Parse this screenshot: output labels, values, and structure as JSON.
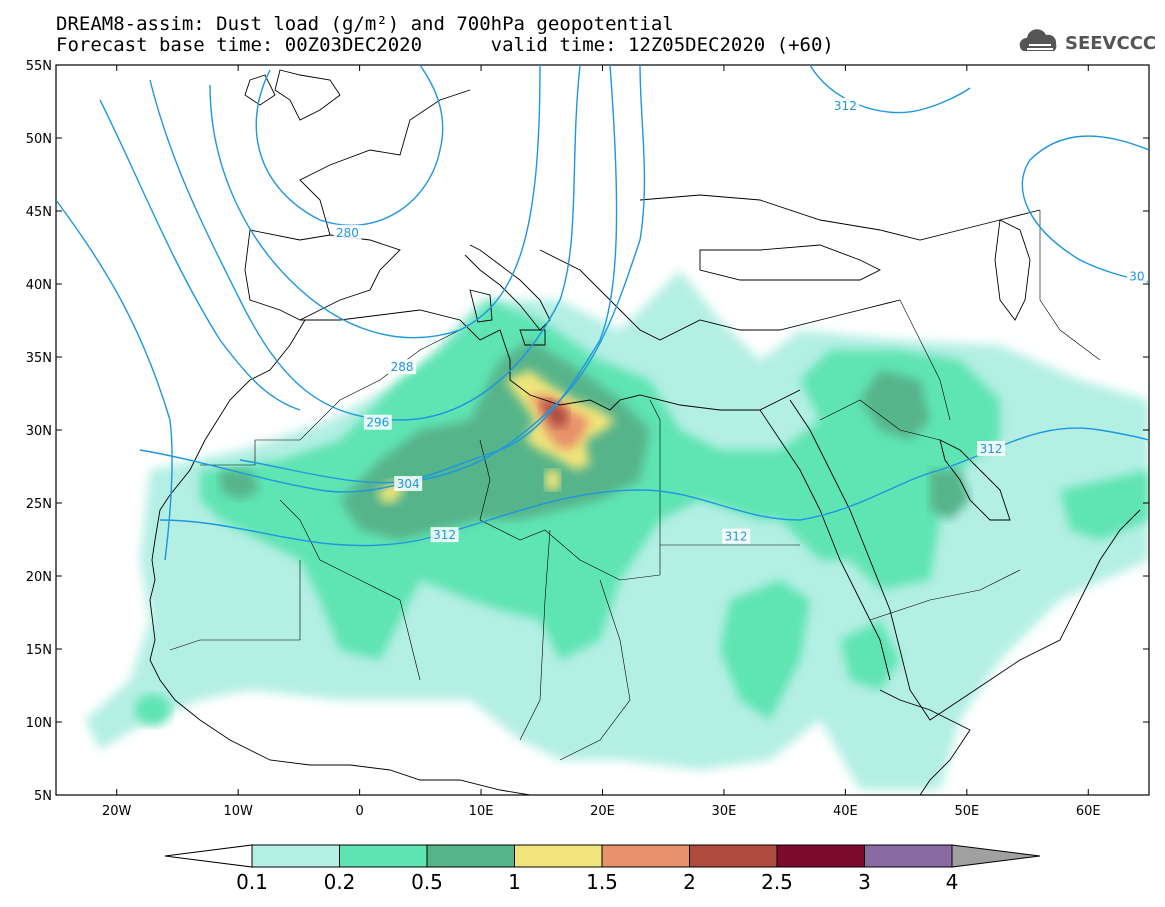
{
  "title": {
    "line1": "DREAM8-assim: Dust load (g/m²) and 700hPa geopotential",
    "line2": "Forecast base time: 00Z03DEC2020      valid time: 12Z05DEC2020 (+60)"
  },
  "logo": {
    "text": "SEEVCCC",
    "icon": "cloud-icon"
  },
  "axes": {
    "lat_labels": [
      "55N",
      "50N",
      "45N",
      "40N",
      "35N",
      "30N",
      "25N",
      "20N",
      "15N",
      "10N",
      "5N"
    ],
    "lat_values": [
      55,
      50,
      45,
      40,
      35,
      30,
      25,
      20,
      15,
      10,
      5
    ],
    "lon_labels": [
      "20W",
      "10W",
      "0",
      "10E",
      "20E",
      "30E",
      "40E",
      "50E",
      "60E"
    ],
    "lon_values": [
      -20,
      -10,
      0,
      10,
      20,
      30,
      40,
      50,
      60
    ],
    "lon_range": [
      -25,
      65
    ],
    "lat_range": [
      5,
      55
    ]
  },
  "contour_labels": [
    {
      "text": "280",
      "lon": -1,
      "lat": 43.5
    },
    {
      "text": "288",
      "lon": 3.5,
      "lat": 34.3
    },
    {
      "text": "296",
      "lon": 1.5,
      "lat": 30.5
    },
    {
      "text": "304",
      "lon": 4,
      "lat": 26.3
    },
    {
      "text": "312",
      "lon": 7,
      "lat": 22.8
    },
    {
      "text": "312",
      "lon": 31,
      "lat": 22.7
    },
    {
      "text": "312",
      "lon": 52,
      "lat": 28.7
    },
    {
      "text": "312",
      "lon": 40,
      "lat": 52.2
    },
    {
      "text": "30",
      "lon": 64,
      "lat": 40.5
    }
  ],
  "colorbar": {
    "labels": [
      "0.1",
      "0.2",
      "0.5",
      "1",
      "1.5",
      "2",
      "2.5",
      "3",
      "4"
    ],
    "colors": [
      "#ffffff",
      "#b4efe3",
      "#5ee4b3",
      "#57b48a",
      "#f0e47a",
      "#e8916a",
      "#ae4b3f",
      "#7e0a2e",
      "#8a6aa2",
      "#a0a0a0"
    ]
  },
  "colors": {
    "contour": "#1e96e0",
    "coast": "#000000"
  }
}
